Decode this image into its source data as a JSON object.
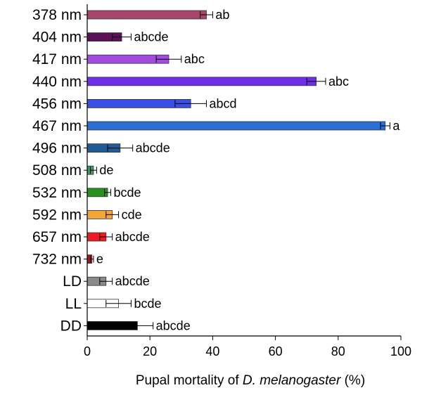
{
  "chart_data": {
    "type": "bar",
    "orientation": "horizontal",
    "xlabel": {
      "prefix": "Pupal mortality of ",
      "italic": "D. melanogaster",
      "suffix": " (%)"
    },
    "xlim": [
      0,
      100
    ],
    "xticks": [
      "0",
      "20",
      "40",
      "60",
      "80",
      "100"
    ],
    "grid": false,
    "categories": [
      "378 nm",
      "404 nm",
      "417 nm",
      "440 nm",
      "456 nm",
      "467 nm",
      "496 nm",
      "508 nm",
      "532 nm",
      "592 nm",
      "657 nm",
      "732 nm",
      "LD",
      "LL",
      "DD"
    ],
    "values": [
      38,
      11,
      26,
      73,
      33,
      95,
      10.5,
      2,
      6.5,
      8,
      6,
      1.5,
      6,
      10,
      16
    ],
    "errors": [
      2,
      3,
      4,
      3,
      5,
      1.5,
      4,
      1,
      1,
      2,
      2,
      0.5,
      2,
      4,
      5
    ],
    "significance": [
      "ab",
      "abcde",
      "abc",
      "abc",
      "abcd",
      "a",
      "abcde",
      "de",
      "bcde",
      "cde",
      "abcde",
      "e",
      "abcde",
      "bcde",
      "abcde"
    ],
    "colors": [
      "#a8456b",
      "#5a1157",
      "#a24de0",
      "#6f2fe8",
      "#3a4fea",
      "#2a6fd4",
      "#1f5c96",
      "#3a9a6a",
      "#25921e",
      "#f5a43a",
      "#ef1b24",
      "#a3182a",
      "#8a8a8a",
      "#ffffff",
      "#000000"
    ]
  }
}
